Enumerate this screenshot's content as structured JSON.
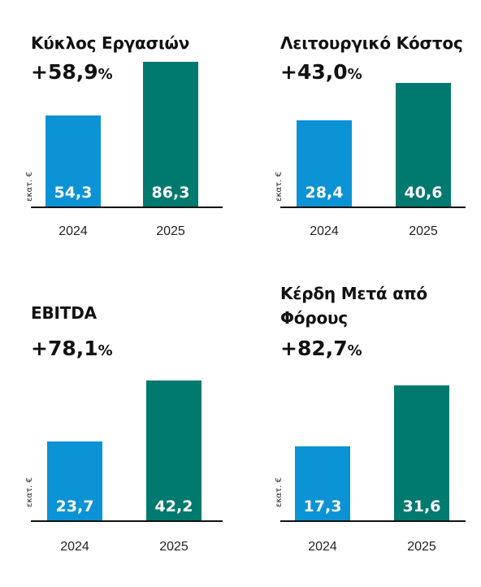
{
  "colors": {
    "bar_2024": "#0b93d6",
    "bar_2025": "#00796f",
    "text": "#111111"
  },
  "chart_data": [
    {
      "type": "bar",
      "title_lines": [
        "Κύκλος Εργασιών"
      ],
      "change_value": "+58,9",
      "change_pct": "%",
      "unit": "εκατ. €",
      "categories": [
        "2024",
        "2025"
      ],
      "values": [
        54.3,
        86.3
      ],
      "value_labels": [
        "54,3",
        "86,3"
      ]
    },
    {
      "type": "bar",
      "title_lines": [
        "Λειτουργικό Κόστος"
      ],
      "change_value": "+43,0",
      "change_pct": "%",
      "unit": "εκατ. €",
      "categories": [
        "2024",
        "2025"
      ],
      "values": [
        28.4,
        40.6
      ],
      "value_labels": [
        "28,4",
        "40,6"
      ]
    },
    {
      "type": "bar",
      "title_lines": [
        "EBITDA"
      ],
      "change_value": "+78,1",
      "change_pct": "%",
      "unit": "εκατ. €",
      "categories": [
        "2024",
        "2025"
      ],
      "values": [
        23.7,
        42.2
      ],
      "value_labels": [
        "23,7",
        "42,2"
      ]
    },
    {
      "type": "bar",
      "title_lines": [
        "Κέρδη Μετά από",
        "Φόρους"
      ],
      "change_value": "+82,7",
      "change_pct": "%",
      "unit": "εκατ. €",
      "categories": [
        "2024",
        "2025"
      ],
      "values": [
        17.3,
        31.6
      ],
      "value_labels": [
        "17,3",
        "31,6"
      ]
    }
  ]
}
